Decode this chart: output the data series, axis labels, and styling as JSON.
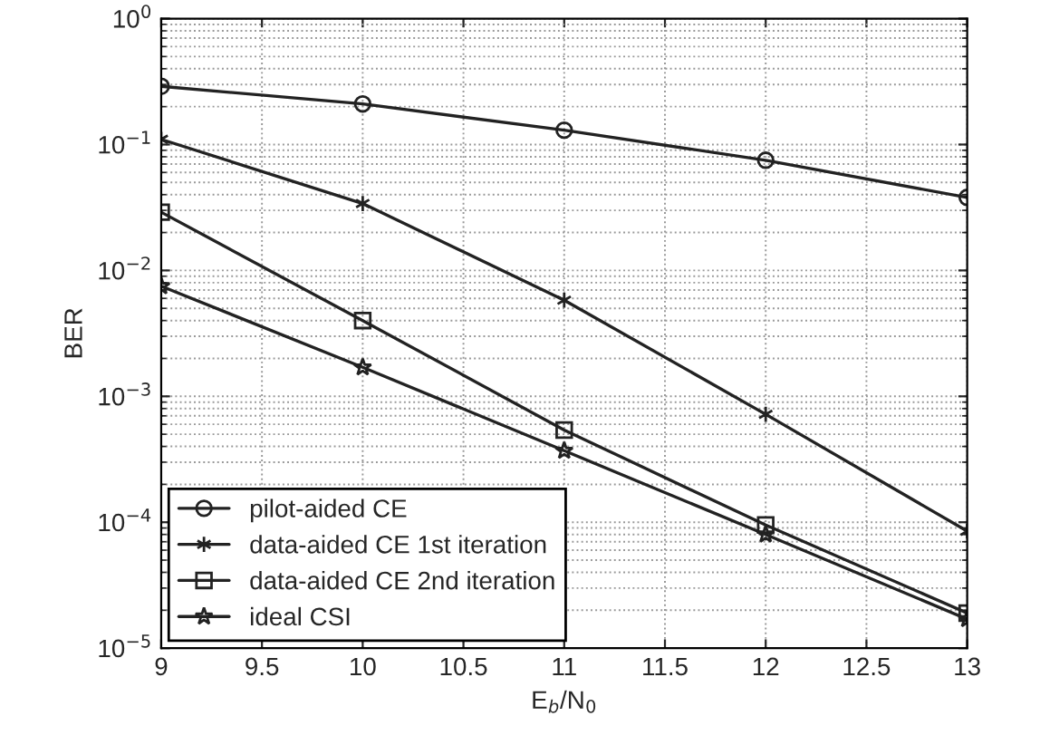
{
  "chart_data": {
    "type": "line",
    "xlabel": "E$_{b}$/N$_{0}$",
    "ylabel": "BER",
    "x": [
      9,
      10,
      11,
      12,
      13
    ],
    "series": [
      {
        "name": "pilot-aided CE",
        "color": "#222222",
        "marker": "circle",
        "values": [
          0.29,
          0.21,
          0.13,
          0.075,
          0.038
        ]
      },
      {
        "name": "data-aided CE 1st iteration",
        "color": "#222222",
        "marker": "cross",
        "values": [
          0.11,
          0.034,
          0.0058,
          0.00072,
          8.5e-05
        ]
      },
      {
        "name": "data-aided CE 2nd iteration",
        "color": "#222222",
        "marker": "square",
        "values": [
          0.029,
          0.004,
          0.00054,
          9.5e-05,
          1.9e-05
        ]
      },
      {
        "name": "ideal CSI",
        "color": "#222222",
        "marker": "star",
        "values": [
          0.0075,
          0.0017,
          0.00037,
          8e-05,
          1.7e-05
        ]
      }
    ],
    "log": "y",
    "xlim": [
      9,
      13
    ],
    "xticks": [
      9,
      9.5,
      10,
      10.5,
      11,
      11.5,
      12,
      12.5,
      13
    ],
    "ylim": [
      1e-05,
      1
    ],
    "yticks": [
      {
        "value": 1e-05,
        "label": "10$^{−5}$"
      },
      {
        "value": 0.0001,
        "label": "10$^{−4}$"
      },
      {
        "value": 0.001,
        "label": "10$^{−3}$"
      },
      {
        "value": 0.01,
        "label": "10$^{−2}$"
      },
      {
        "value": 0.1,
        "label": "10$^{−1}$"
      },
      {
        "value": 1,
        "label": "10$^{0}$"
      }
    ],
    "grid": true,
    "legend": "bottom left",
    "line_style": "solid"
  }
}
